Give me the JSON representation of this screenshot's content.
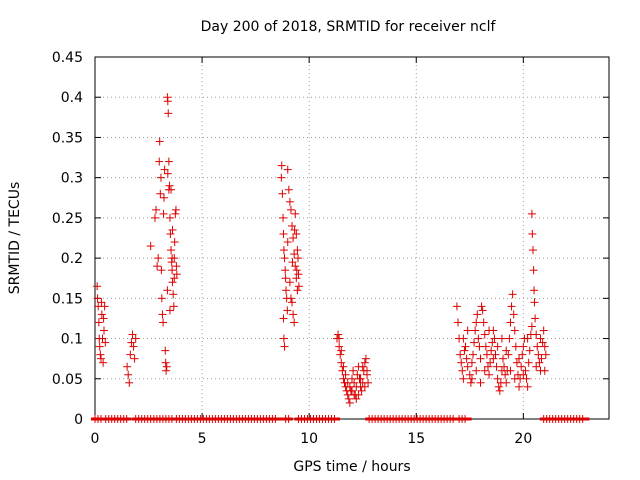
{
  "chart_data": {
    "type": "scatter",
    "title": "Day 200 of 2018, SRMTID for receiver nclf",
    "xlabel": "GPS time / hours",
    "ylabel": "SRMTID / TECUs",
    "xlim": [
      0,
      24
    ],
    "ylim": [
      0,
      0.45
    ],
    "xticks": [
      0,
      5,
      10,
      15,
      20
    ],
    "xtick_labels": [
      "0",
      "5",
      "10",
      "15",
      "20"
    ],
    "yticks": [
      0,
      0.05,
      0.1,
      0.15,
      0.2,
      0.25,
      0.3,
      0.35,
      0.4,
      0.45
    ],
    "ytick_labels": [
      "0",
      "0.05",
      "0.1",
      "0.15",
      "0.2",
      "0.25",
      "0.3",
      "0.35",
      "0.4",
      "0.45"
    ],
    "grid": true,
    "marker": "+",
    "color": "#dd0000",
    "series": [
      {
        "name": "SRMTID",
        "points": [
          [
            0.1,
            0.165
          ],
          [
            0.12,
            0.15
          ],
          [
            0.15,
            0.14
          ],
          [
            0.18,
            0.12
          ],
          [
            0.2,
            0.1
          ],
          [
            0.22,
            0.09
          ],
          [
            0.25,
            0.08
          ],
          [
            0.28,
            0.075
          ],
          [
            0.3,
            0.145
          ],
          [
            0.32,
            0.13
          ],
          [
            0.35,
            0.1
          ],
          [
            0.38,
            0.07
          ],
          [
            0.4,
            0.125
          ],
          [
            0.42,
            0.11
          ],
          [
            0.45,
            0.14
          ],
          [
            0.48,
            0.095
          ],
          [
            1.5,
            0.065
          ],
          [
            1.55,
            0.055
          ],
          [
            1.6,
            0.045
          ],
          [
            1.65,
            0.08
          ],
          [
            1.7,
            0.095
          ],
          [
            1.75,
            0.105
          ],
          [
            1.8,
            0.09
          ],
          [
            1.85,
            0.075
          ],
          [
            1.9,
            0.1
          ],
          [
            2.6,
            0.215
          ],
          [
            2.8,
            0.25
          ],
          [
            2.85,
            0.26
          ],
          [
            2.9,
            0.19
          ],
          [
            2.95,
            0.2
          ],
          [
            3.0,
            0.32
          ],
          [
            3.02,
            0.345
          ],
          [
            3.05,
            0.28
          ],
          [
            3.08,
            0.3
          ],
          [
            3.1,
            0.185
          ],
          [
            3.12,
            0.15
          ],
          [
            3.15,
            0.13
          ],
          [
            3.18,
            0.12
          ],
          [
            3.2,
            0.255
          ],
          [
            3.22,
            0.275
          ],
          [
            3.25,
            0.31
          ],
          [
            3.28,
            0.085
          ],
          [
            3.3,
            0.07
          ],
          [
            3.32,
            0.06
          ],
          [
            3.35,
            0.065
          ],
          [
            3.38,
            0.4
          ],
          [
            3.4,
            0.395
          ],
          [
            3.42,
            0.38
          ],
          [
            3.45,
            0.32
          ],
          [
            3.48,
            0.29
          ],
          [
            3.5,
            0.25
          ],
          [
            3.52,
            0.23
          ],
          [
            3.55,
            0.21
          ],
          [
            3.58,
            0.195
          ],
          [
            3.6,
            0.185
          ],
          [
            3.62,
            0.17
          ],
          [
            3.65,
            0.155
          ],
          [
            3.68,
            0.14
          ],
          [
            3.7,
            0.2
          ],
          [
            3.72,
            0.22
          ],
          [
            3.75,
            0.255
          ],
          [
            3.78,
            0.26
          ],
          [
            3.8,
            0.19
          ],
          [
            3.82,
            0.18
          ],
          [
            3.38,
            0.16
          ],
          [
            3.45,
            0.285
          ],
          [
            3.55,
            0.285
          ],
          [
            3.5,
            0.135
          ],
          [
            3.62,
            0.235
          ],
          [
            3.7,
            0.175
          ],
          [
            3.4,
            0.305
          ],
          [
            3.6,
            0.2
          ],
          [
            8.7,
            0.3
          ],
          [
            8.72,
            0.315
          ],
          [
            8.75,
            0.28
          ],
          [
            8.78,
            0.25
          ],
          [
            8.8,
            0.23
          ],
          [
            8.82,
            0.21
          ],
          [
            8.85,
            0.2
          ],
          [
            8.88,
            0.185
          ],
          [
            8.9,
            0.175
          ],
          [
            8.92,
            0.16
          ],
          [
            8.95,
            0.15
          ],
          [
            8.98,
            0.135
          ],
          [
            8.8,
            0.125
          ],
          [
            8.82,
            0.1
          ],
          [
            8.85,
            0.09
          ],
          [
            9.0,
            0.31
          ],
          [
            9.05,
            0.285
          ],
          [
            9.1,
            0.27
          ],
          [
            9.15,
            0.26
          ],
          [
            9.2,
            0.24
          ],
          [
            9.25,
            0.225
          ],
          [
            9.3,
            0.205
          ],
          [
            9.35,
            0.19
          ],
          [
            9.4,
            0.175
          ],
          [
            9.45,
            0.16
          ],
          [
            9.2,
            0.145
          ],
          [
            9.25,
            0.13
          ],
          [
            9.3,
            0.12
          ],
          [
            9.35,
            0.255
          ],
          [
            9.4,
            0.23
          ],
          [
            9.45,
            0.21
          ],
          [
            9.48,
            0.2
          ],
          [
            9.5,
            0.18
          ],
          [
            9.52,
            0.165
          ],
          [
            9.0,
            0.22
          ],
          [
            9.1,
            0.17
          ],
          [
            9.15,
            0.15
          ],
          [
            9.22,
            0.195
          ],
          [
            9.32,
            0.235
          ],
          [
            9.42,
            0.185
          ],
          [
            11.3,
            0.1
          ],
          [
            11.35,
            0.105
          ],
          [
            11.4,
            0.09
          ],
          [
            11.45,
            0.08
          ],
          [
            11.5,
            0.07
          ],
          [
            11.55,
            0.06
          ],
          [
            11.6,
            0.05
          ],
          [
            11.65,
            0.045
          ],
          [
            11.7,
            0.04
          ],
          [
            11.75,
            0.035
          ],
          [
            11.8,
            0.03
          ],
          [
            11.85,
            0.025
          ],
          [
            11.9,
            0.02
          ],
          [
            11.95,
            0.035
          ],
          [
            12.0,
            0.05
          ],
          [
            12.05,
            0.06
          ],
          [
            12.1,
            0.045
          ],
          [
            12.15,
            0.03
          ],
          [
            12.2,
            0.04
          ],
          [
            12.25,
            0.055
          ],
          [
            12.3,
            0.065
          ],
          [
            12.35,
            0.05
          ],
          [
            12.4,
            0.04
          ],
          [
            12.45,
            0.035
          ],
          [
            12.5,
            0.045
          ],
          [
            12.55,
            0.06
          ],
          [
            12.6,
            0.07
          ],
          [
            12.65,
            0.075
          ],
          [
            12.7,
            0.055
          ],
          [
            12.75,
            0.045
          ],
          [
            11.4,
            0.1
          ],
          [
            11.5,
            0.085
          ],
          [
            11.6,
            0.065
          ],
          [
            11.7,
            0.055
          ],
          [
            11.8,
            0.045
          ],
          [
            11.9,
            0.04
          ],
          [
            12.0,
            0.035
          ],
          [
            12.1,
            0.03
          ],
          [
            12.2,
            0.025
          ],
          [
            12.3,
            0.03
          ],
          [
            12.4,
            0.05
          ],
          [
            12.5,
            0.065
          ],
          [
            12.6,
            0.04
          ],
          [
            12.7,
            0.06
          ],
          [
            16.9,
            0.14
          ],
          [
            16.95,
            0.12
          ],
          [
            17.0,
            0.1
          ],
          [
            17.05,
            0.08
          ],
          [
            17.1,
            0.07
          ],
          [
            17.15,
            0.06
          ],
          [
            17.2,
            0.05
          ],
          [
            17.25,
            0.085
          ],
          [
            17.3,
            0.09
          ],
          [
            17.35,
            0.075
          ],
          [
            17.4,
            0.065
          ],
          [
            17.5,
            0.055
          ],
          [
            17.55,
            0.045
          ],
          [
            17.6,
            0.07
          ],
          [
            17.65,
            0.08
          ],
          [
            17.7,
            0.095
          ],
          [
            17.75,
            0.11
          ],
          [
            17.8,
            0.12
          ],
          [
            17.85,
            0.13
          ],
          [
            17.9,
            0.1
          ],
          [
            17.95,
            0.09
          ],
          [
            18.0,
            0.075
          ],
          [
            18.05,
            0.14
          ],
          [
            18.1,
            0.135
          ],
          [
            18.15,
            0.12
          ],
          [
            18.2,
            0.105
          ],
          [
            18.25,
            0.09
          ],
          [
            18.3,
            0.08
          ],
          [
            18.35,
            0.065
          ],
          [
            18.4,
            0.055
          ],
          [
            18.45,
            0.07
          ],
          [
            18.5,
            0.085
          ],
          [
            18.55,
            0.095
          ],
          [
            18.6,
            0.11
          ],
          [
            18.65,
            0.1
          ],
          [
            18.7,
            0.08
          ],
          [
            18.75,
            0.065
          ],
          [
            18.8,
            0.05
          ],
          [
            18.85,
            0.04
          ],
          [
            18.9,
            0.035
          ],
          [
            18.95,
            0.045
          ],
          [
            19.0,
            0.06
          ],
          [
            19.05,
            0.075
          ],
          [
            19.1,
            0.065
          ],
          [
            19.15,
            0.055
          ],
          [
            19.2,
            0.045
          ],
          [
            19.25,
            0.06
          ],
          [
            19.3,
            0.08
          ],
          [
            19.35,
            0.1
          ],
          [
            19.4,
            0.12
          ],
          [
            19.45,
            0.14
          ],
          [
            19.5,
            0.155
          ],
          [
            19.55,
            0.13
          ],
          [
            19.6,
            0.11
          ],
          [
            19.65,
            0.09
          ],
          [
            19.7,
            0.07
          ],
          [
            19.75,
            0.055
          ],
          [
            19.8,
            0.04
          ],
          [
            19.85,
            0.05
          ],
          [
            19.9,
            0.065
          ],
          [
            19.95,
            0.08
          ],
          [
            20.0,
            0.09
          ],
          [
            20.05,
            0.1
          ],
          [
            20.1,
            0.06
          ],
          [
            20.15,
            0.05
          ],
          [
            20.2,
            0.04
          ],
          [
            20.25,
            0.07
          ],
          [
            20.3,
            0.085
          ],
          [
            20.35,
            0.105
          ],
          [
            20.4,
            0.255
          ],
          [
            20.42,
            0.23
          ],
          [
            20.45,
            0.21
          ],
          [
            20.48,
            0.185
          ],
          [
            20.5,
            0.16
          ],
          [
            20.52,
            0.145
          ],
          [
            20.55,
            0.125
          ],
          [
            20.6,
            0.105
          ],
          [
            20.65,
            0.09
          ],
          [
            20.7,
            0.08
          ],
          [
            20.75,
            0.07
          ],
          [
            20.8,
            0.06
          ],
          [
            20.85,
            0.075
          ],
          [
            20.9,
            0.095
          ],
          [
            20.95,
            0.11
          ],
          [
            21.0,
            0.09
          ],
          [
            21.05,
            0.08
          ],
          [
            17.2,
            0.1
          ],
          [
            17.4,
            0.11
          ],
          [
            17.6,
            0.05
          ],
          [
            17.8,
            0.06
          ],
          [
            18.0,
            0.045
          ],
          [
            18.2,
            0.06
          ],
          [
            18.4,
            0.11
          ],
          [
            18.6,
            0.075
          ],
          [
            18.8,
            0.09
          ],
          [
            19.0,
            0.1
          ],
          [
            19.2,
            0.085
          ],
          [
            19.4,
            0.06
          ],
          [
            19.6,
            0.05
          ],
          [
            19.8,
            0.075
          ],
          [
            20.0,
            0.055
          ],
          [
            20.2,
            0.1
          ],
          [
            20.4,
            0.115
          ],
          [
            20.6,
            0.065
          ],
          [
            20.8,
            0.1
          ],
          [
            21.0,
            0.06
          ]
        ]
      }
    ],
    "zero_segments": [
      [
        0.0,
        0.3
      ],
      [
        0.5,
        1.5
      ],
      [
        1.9,
        2.65
      ],
      [
        2.75,
        3.35
      ],
      [
        3.45,
        3.6
      ],
      [
        3.8,
        8.55
      ],
      [
        8.9,
        9.05
      ],
      [
        9.5,
        11.25
      ],
      [
        12.8,
        16.8
      ],
      [
        17.0,
        17.4
      ],
      [
        20.95,
        22.9
      ]
    ]
  }
}
